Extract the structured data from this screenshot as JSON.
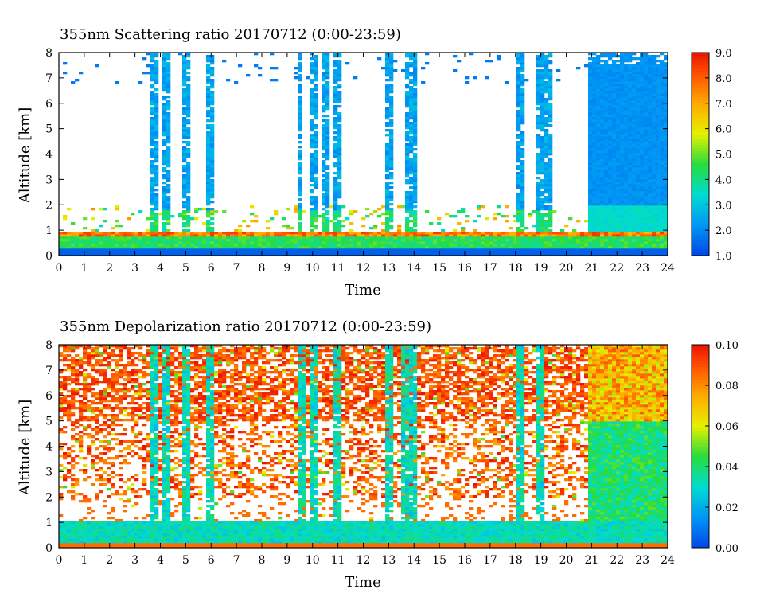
{
  "chart_data": [
    {
      "type": "heatmap",
      "title": "355nm Scattering ratio  20170712 (0:00-23:59)",
      "xlabel": "Time",
      "ylabel": "Altitude [km]",
      "xlim": [
        0,
        24
      ],
      "ylim": [
        0,
        8
      ],
      "x_ticks": [
        "0",
        "1",
        "2",
        "3",
        "4",
        "5",
        "6",
        "7",
        "8",
        "9",
        "10",
        "11",
        "12",
        "13",
        "14",
        "15",
        "16",
        "17",
        "18",
        "19",
        "20",
        "21",
        "22",
        "23",
        "24"
      ],
      "y_ticks": [
        "0",
        "1",
        "2",
        "3",
        "4",
        "5",
        "6",
        "7",
        "8"
      ],
      "colorbar": {
        "range": [
          1.0,
          9.0
        ],
        "ticks": [
          "1.0",
          "2.0",
          "3.0",
          "4.0",
          "5.0",
          "6.0",
          "7.0",
          "8.0",
          "9.0"
        ],
        "colormap": "rainbow"
      },
      "grid": false,
      "features": {
        "boundary_layer_top_km": 0.9,
        "cloud_columns_hours": [
          3.8,
          4.2,
          5.0,
          6.0,
          9.5,
          10.0,
          10.5,
          11.0,
          13.0,
          13.7,
          14.0,
          18.2,
          19.0,
          19.3
        ],
        "high_signal_region_hours": [
          20.8,
          24.0
        ]
      }
    },
    {
      "type": "heatmap",
      "title": "355nm Depolarization ratio  20170712 (0:00-23:59)",
      "xlabel": "Time",
      "ylabel": "Altitude [km]",
      "xlim": [
        0,
        24
      ],
      "ylim": [
        0,
        8
      ],
      "x_ticks": [
        "0",
        "1",
        "2",
        "3",
        "4",
        "5",
        "6",
        "7",
        "8",
        "9",
        "10",
        "11",
        "12",
        "13",
        "14",
        "15",
        "16",
        "17",
        "18",
        "19",
        "20",
        "21",
        "22",
        "23",
        "24"
      ],
      "y_ticks": [
        "0",
        "1",
        "2",
        "3",
        "4",
        "5",
        "6",
        "7",
        "8"
      ],
      "colorbar": {
        "range": [
          0.0,
          0.1
        ],
        "ticks": [
          "0.00",
          "0.02",
          "0.04",
          "0.06",
          "0.08",
          "0.10"
        ],
        "colormap": "rainbow"
      },
      "grid": false,
      "features": {
        "low_depol_columns_hours": [
          3.8,
          4.2,
          5.0,
          6.0,
          9.5,
          10.0,
          11.0,
          13.0,
          13.7,
          14.0,
          18.2,
          19.0
        ],
        "low_depol_region_hours": [
          20.8,
          24.0
        ]
      }
    }
  ]
}
